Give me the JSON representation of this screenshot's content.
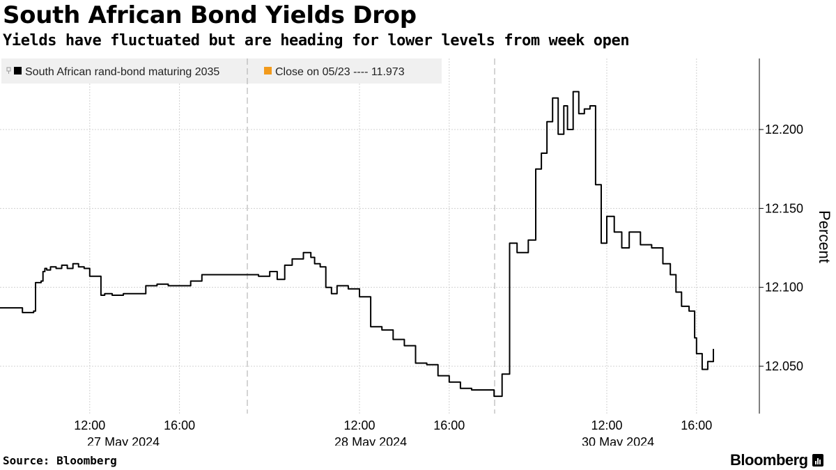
{
  "header": {
    "title": "South African Bond Yields Drop",
    "subtitle": "Yields have fluctuated but are heading for lower levels from week open"
  },
  "footer": {
    "source": "Source: Bloomberg",
    "logo_text": "Bloomberg"
  },
  "colors": {
    "line": "#000000",
    "close_marker": "#f29a1b",
    "grid": "#d0d0d0",
    "legend_bg": "#f0f0f0"
  },
  "chart_data": {
    "type": "line",
    "title": "South African Bond Yields Drop",
    "subtitle": "Yields have fluctuated but are heading for lower levels from week open",
    "ylabel": "Percent",
    "xlabel": "",
    "ylim": [
      12.02,
      12.245
    ],
    "y_ticks": [
      12.05,
      12.1,
      12.15,
      12.2
    ],
    "y_tick_labels": [
      "12.050",
      "12.100",
      "12.150",
      "12.200"
    ],
    "grid": true,
    "legend_position": "top-left",
    "legend": [
      {
        "label": "South African rand-bond maturing 2035",
        "color": "#000000"
      },
      {
        "label": "Close on 05/23 ---- 11.973",
        "color": "#f29a1b"
      }
    ],
    "sessions": [
      {
        "date_label": "27 May 2024",
        "start": "2024-05-27 08:00",
        "end": "2024-05-27 19:00"
      },
      {
        "date_label": "28 May 2024",
        "start": "2024-05-28 07:00",
        "end": "2024-05-28 18:00"
      },
      {
        "date_label": "30 May 2024",
        "start": "2024-05-30 07:00",
        "end": "2024-05-30 18:00"
      }
    ],
    "x_ticks": [
      {
        "time": "2024-05-27 12:00",
        "label": "12:00"
      },
      {
        "time": "2024-05-27 16:00",
        "label": "16:00"
      },
      {
        "time": "2024-05-28 12:00",
        "label": "12:00"
      },
      {
        "time": "2024-05-28 16:00",
        "label": "16:00"
      },
      {
        "time": "2024-05-30 12:00",
        "label": "12:00"
      },
      {
        "time": "2024-05-30 16:00",
        "label": "16:00"
      }
    ],
    "series": [
      {
        "name": "South African rand-bond maturing 2035",
        "x": [
          "2024-05-27 08:00",
          "2024-05-27 08:50",
          "2024-05-27 09:00",
          "2024-05-27 09:30",
          "2024-05-27 09:35",
          "2024-05-27 09:50",
          "2024-05-27 09:55",
          "2024-05-27 10:00",
          "2024-05-27 10:05",
          "2024-05-27 10:15",
          "2024-05-27 10:30",
          "2024-05-27 10:45",
          "2024-05-27 11:00",
          "2024-05-27 11:15",
          "2024-05-27 11:30",
          "2024-05-27 11:45",
          "2024-05-27 12:00",
          "2024-05-27 12:20",
          "2024-05-27 12:30",
          "2024-05-27 12:40",
          "2024-05-27 13:00",
          "2024-05-27 13:30",
          "2024-05-27 14:00",
          "2024-05-27 14:30",
          "2024-05-27 15:00",
          "2024-05-27 15:30",
          "2024-05-27 16:00",
          "2024-05-27 16:30",
          "2024-05-27 17:00",
          "2024-05-27 18:00",
          "2024-05-27 19:00",
          "2024-05-28 07:00",
          "2024-05-28 07:30",
          "2024-05-28 08:00",
          "2024-05-28 08:20",
          "2024-05-28 08:40",
          "2024-05-28 09:00",
          "2024-05-28 09:30",
          "2024-05-28 09:50",
          "2024-05-28 10:00",
          "2024-05-28 10:15",
          "2024-05-28 10:30",
          "2024-05-28 10:45",
          "2024-05-28 11:00",
          "2024-05-28 11:30",
          "2024-05-28 12:00",
          "2024-05-28 12:30",
          "2024-05-28 13:00",
          "2024-05-28 13:30",
          "2024-05-28 14:00",
          "2024-05-28 14:30",
          "2024-05-28 15:00",
          "2024-05-28 15:30",
          "2024-05-28 16:00",
          "2024-05-28 16:30",
          "2024-05-28 17:00",
          "2024-05-28 17:30",
          "2024-05-28 18:00",
          "2024-05-30 07:00",
          "2024-05-30 07:20",
          "2024-05-30 07:40",
          "2024-05-30 08:00",
          "2024-05-30 08:30",
          "2024-05-30 08:50",
          "2024-05-30 09:05",
          "2024-05-30 09:20",
          "2024-05-30 09:35",
          "2024-05-30 09:50",
          "2024-05-30 10:05",
          "2024-05-30 10:15",
          "2024-05-30 10:30",
          "2024-05-30 10:45",
          "2024-05-30 11:00",
          "2024-05-30 11:15",
          "2024-05-30 11:30",
          "2024-05-30 11:45",
          "2024-05-30 12:00",
          "2024-05-30 12:20",
          "2024-05-30 12:40",
          "2024-05-30 13:00",
          "2024-05-30 13:30",
          "2024-05-30 14:00",
          "2024-05-30 14:30",
          "2024-05-30 14:50",
          "2024-05-30 15:05",
          "2024-05-30 15:20",
          "2024-05-30 15:40",
          "2024-05-30 15:55",
          "2024-05-30 16:00",
          "2024-05-30 16:15",
          "2024-05-30 16:30",
          "2024-05-30 16:45"
        ],
        "values": [
          12.087,
          12.087,
          12.084,
          12.085,
          12.103,
          12.104,
          12.11,
          12.112,
          12.111,
          12.113,
          12.112,
          12.114,
          12.112,
          12.115,
          12.113,
          12.112,
          12.107,
          12.107,
          12.095,
          12.096,
          12.095,
          12.096,
          12.096,
          12.101,
          12.102,
          12.101,
          12.101,
          12.104,
          12.108,
          12.108,
          12.108,
          12.108,
          12.107,
          12.11,
          12.105,
          12.114,
          12.118,
          12.122,
          12.119,
          12.115,
          12.113,
          12.1,
          12.096,
          12.101,
          12.099,
          12.094,
          12.075,
          12.073,
          12.067,
          12.063,
          12.052,
          12.051,
          12.044,
          12.04,
          12.036,
          12.035,
          12.035,
          12.031,
          12.031,
          12.045,
          12.128,
          12.122,
          12.13,
          12.175,
          12.185,
          12.205,
          12.22,
          12.197,
          12.215,
          12.2,
          12.224,
          12.21,
          12.213,
          12.215,
          12.165,
          12.128,
          12.145,
          12.135,
          12.125,
          12.135,
          12.127,
          12.125,
          12.115,
          12.108,
          12.097,
          12.088,
          12.085,
          12.068,
          12.058,
          12.048,
          12.053,
          12.061
        ]
      }
    ]
  }
}
